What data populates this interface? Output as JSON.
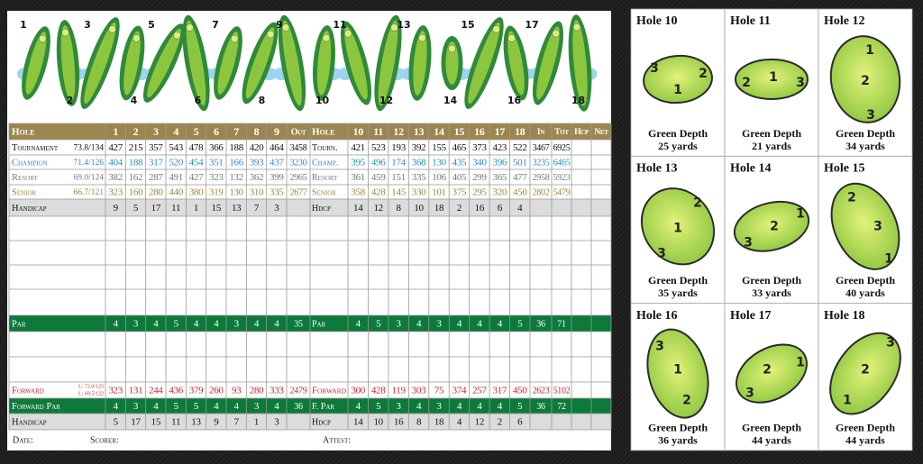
{
  "illustration": {
    "hole_numbers": [
      1,
      2,
      3,
      4,
      5,
      6,
      7,
      8,
      9,
      10,
      11,
      12,
      13,
      14,
      15,
      16,
      17,
      18
    ]
  },
  "table": {
    "header": {
      "label": "Hole",
      "front": [
        1,
        2,
        3,
        4,
        5,
        6,
        7,
        8,
        9
      ],
      "out": "Out",
      "label2": "Hole",
      "back": [
        10,
        11,
        12,
        13,
        14,
        15,
        16,
        17,
        18
      ],
      "in": "In",
      "tot": "Tot",
      "hcp": "Hcp",
      "net": "Net"
    },
    "tees": [
      {
        "label": "Tournament",
        "rating": "73.8/134",
        "front": [
          427,
          215,
          357,
          543,
          478,
          366,
          188,
          420,
          464
        ],
        "out": 3458,
        "label2": "Tourn.",
        "back": [
          421,
          523,
          193,
          392,
          155,
          465,
          373,
          423,
          522
        ],
        "in": 3467,
        "tot": 6925
      },
      {
        "label": "Champion",
        "rating": "71.4/126",
        "front": [
          404,
          188,
          317,
          520,
          454,
          351,
          166,
          393,
          437
        ],
        "out": 3230,
        "label2": "Champ.",
        "back": [
          395,
          496,
          174,
          368,
          130,
          435,
          340,
          396,
          501
        ],
        "in": 3235,
        "tot": 6465
      },
      {
        "label": "Resort",
        "rating": "69.0/124",
        "front": [
          382,
          162,
          287,
          491,
          427,
          323,
          132,
          362,
          399
        ],
        "out": 2965,
        "label2": "Resort",
        "back": [
          361,
          459,
          151,
          335,
          106,
          405,
          299,
          365,
          477
        ],
        "in": 2958,
        "tot": 5923
      },
      {
        "label": "Senior",
        "rating": "66.7/121",
        "front": [
          323,
          160,
          280,
          440,
          380,
          319,
          130,
          310,
          335
        ],
        "out": 2677,
        "label2": "Senior",
        "back": [
          358,
          428,
          145,
          330,
          101,
          375,
          295,
          320,
          450
        ],
        "in": 2802,
        "tot": 5479
      }
    ],
    "handicap": {
      "label": "Handicap",
      "front": [
        9,
        5,
        17,
        11,
        1,
        15,
        13,
        7,
        3
      ],
      "label2": "Hdcp",
      "back": [
        14,
        12,
        8,
        10,
        18,
        2,
        16,
        6,
        4
      ]
    },
    "par": {
      "label": "Par",
      "front": [
        4,
        3,
        4,
        5,
        4,
        4,
        3,
        4,
        4
      ],
      "out": 35,
      "label2": "Par",
      "back": [
        4,
        5,
        3,
        4,
        3,
        4,
        4,
        4,
        5
      ],
      "in": 36,
      "tot": 71
    },
    "forward": {
      "label": "Forward",
      "rating": [
        "L: 72.0/125",
        "L: 69.5/122"
      ],
      "front": [
        323,
        131,
        244,
        436,
        379,
        260,
        93,
        280,
        333
      ],
      "out": 2479,
      "label2": "Forward",
      "back": [
        300,
        428,
        119,
        303,
        75,
        374,
        257,
        317,
        450
      ],
      "in": 2623,
      "tot": 5102
    },
    "forward_par": {
      "label": "Forward Par",
      "front": [
        4,
        3,
        4,
        5,
        5,
        4,
        4,
        3,
        4
      ],
      "out": 36,
      "label2": "F. Par",
      "back": [
        4,
        5,
        3,
        4,
        3,
        4,
        4,
        4,
        5
      ],
      "in": 36,
      "tot": 72
    },
    "handicap2": {
      "label": "Handicap",
      "front": [
        5,
        17,
        15,
        11,
        13,
        9,
        7,
        1,
        3
      ],
      "label2": "Hdcp",
      "back": [
        14,
        10,
        16,
        8,
        18,
        4,
        12,
        2,
        6
      ]
    },
    "footer": {
      "date": "Date:",
      "scorer": "Scorer:",
      "attest": "Attest:"
    }
  },
  "greens": [
    {
      "title": "Hole 10",
      "pins": [
        3,
        2,
        1
      ],
      "depth_label": "Green Depth",
      "depth": "25 yards"
    },
    {
      "title": "Hole 11",
      "pins": [
        2,
        1,
        3
      ],
      "depth_label": "Green Depth",
      "depth": "21 yards"
    },
    {
      "title": "Hole 12",
      "pins": [
        1,
        2,
        3
      ],
      "depth_label": "Green Depth",
      "depth": "34 yards"
    },
    {
      "title": "Hole 13",
      "pins": [
        2,
        1,
        3
      ],
      "depth_label": "Green Depth",
      "depth": "35 yards"
    },
    {
      "title": "Hole 14",
      "pins": [
        1,
        2,
        3
      ],
      "depth_label": "Green Depth",
      "depth": "33 yards"
    },
    {
      "title": "Hole 15",
      "pins": [
        2,
        3,
        1
      ],
      "depth_label": "Green Depth",
      "depth": "40 yards"
    },
    {
      "title": "Hole 16",
      "pins": [
        3,
        1,
        2
      ],
      "depth_label": "Green Depth",
      "depth": "36 yards"
    },
    {
      "title": "Hole 17",
      "pins": [
        1,
        2,
        3
      ],
      "depth_label": "Green Depth",
      "depth": "44 yards"
    },
    {
      "title": "Hole 18",
      "pins": [
        3,
        2,
        1
      ],
      "depth_label": "Green Depth",
      "depth": "44 yards"
    }
  ]
}
